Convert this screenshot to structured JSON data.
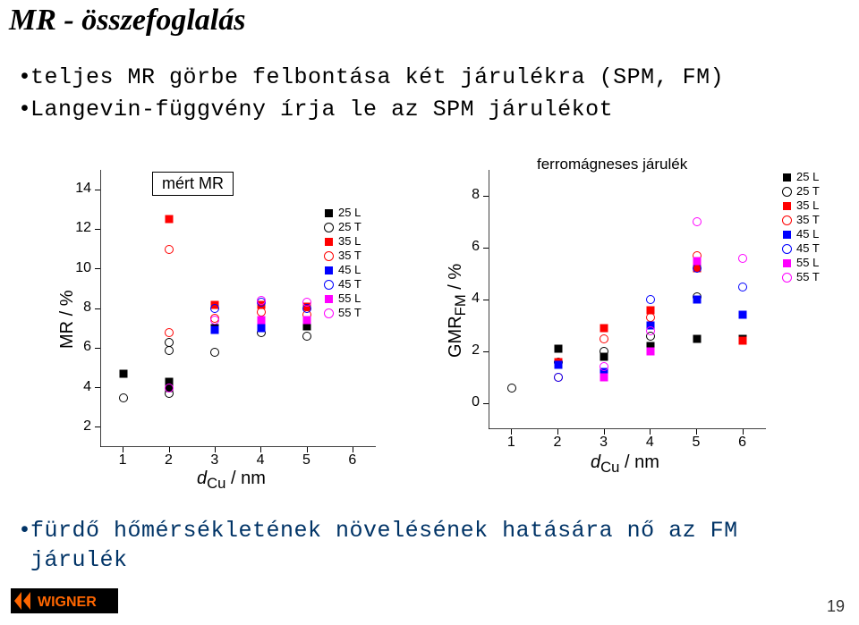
{
  "title": "MR - összefoglalás",
  "bullet1": "teljes MR görbe felbontása két járulékra (SPM, FM)",
  "bullet2": "Langevin-függvény írja le az SPM járulékot",
  "note_line1": "fürdő hőmérsékletének növelésének hatására nő az FM",
  "note_line2": "járulék",
  "pagenum": "19",
  "chart1": {
    "ylabel": "MR / %",
    "xlabel_html": "<span style='font-style:italic'>d</span><sub>Cu</sub> / nm",
    "boxed_title": "mért MR",
    "xlim": [
      0.5,
      6.5
    ],
    "ylim": [
      1,
      15
    ],
    "yticks": [
      2,
      4,
      6,
      8,
      10,
      12,
      14
    ],
    "xticks": [
      1,
      2,
      3,
      4,
      5,
      6
    ],
    "legend": [
      {
        "label": "25 L",
        "shape": "sq",
        "color": "#000000"
      },
      {
        "label": "25 T",
        "shape": "circ",
        "color": "#000000"
      },
      {
        "label": "35 L",
        "shape": "sq",
        "color": "#ff0000"
      },
      {
        "label": "35 T",
        "shape": "circ",
        "color": "#ff0000"
      },
      {
        "label": "45 L",
        "shape": "sq",
        "color": "#0000ff"
      },
      {
        "label": "45 T",
        "shape": "circ",
        "color": "#0000ff"
      },
      {
        "label": "55 L",
        "shape": "sq",
        "color": "#ff00ff"
      },
      {
        "label": "55 T",
        "shape": "circ",
        "color": "#ff00ff"
      }
    ],
    "series": [
      {
        "shape": "sq",
        "color": "#000000",
        "pts": [
          [
            1,
            4.7
          ],
          [
            2,
            4.3
          ],
          [
            2,
            4.0
          ],
          [
            3,
            7.0
          ],
          [
            4,
            7.2
          ],
          [
            5,
            7.1
          ]
        ]
      },
      {
        "shape": "circ",
        "color": "#000000",
        "pts": [
          [
            1,
            3.5
          ],
          [
            2,
            6.3
          ],
          [
            2,
            5.9
          ],
          [
            2,
            3.7
          ],
          [
            3,
            5.8
          ],
          [
            4,
            6.8
          ],
          [
            5,
            6.6
          ]
        ]
      },
      {
        "shape": "sq",
        "color": "#ff0000",
        "pts": [
          [
            2,
            12.5
          ],
          [
            3,
            8.2
          ],
          [
            4,
            8.2
          ],
          [
            5,
            8.1
          ]
        ]
      },
      {
        "shape": "circ",
        "color": "#ff0000",
        "pts": [
          [
            2,
            11.0
          ],
          [
            2,
            6.8
          ],
          [
            3,
            7.5
          ],
          [
            4,
            7.8
          ],
          [
            5,
            7.7
          ]
        ]
      },
      {
        "shape": "sq",
        "color": "#0000ff",
        "pts": [
          [
            3,
            6.9
          ],
          [
            4,
            7.0
          ]
        ]
      },
      {
        "shape": "circ",
        "color": "#0000ff",
        "pts": [
          [
            3,
            8.0
          ],
          [
            4,
            8.3
          ],
          [
            5,
            8.0
          ]
        ]
      },
      {
        "shape": "sq",
        "color": "#ff00ff",
        "pts": [
          [
            4,
            7.4
          ],
          [
            5,
            7.4
          ]
        ]
      },
      {
        "shape": "circ",
        "color": "#ff00ff",
        "pts": [
          [
            2,
            4.0
          ],
          [
            3,
            7.4
          ],
          [
            4,
            8.4
          ],
          [
            5,
            8.3
          ]
        ]
      }
    ]
  },
  "chart2": {
    "ylabel_html": "GMR<sub>FM</sub> / %",
    "xlabel_html": "<span style='font-style:italic'>d</span><sub>Cu</sub> / nm",
    "top_label": "ferromágneses járulék",
    "xlim": [
      0.5,
      6.5
    ],
    "ylim": [
      -1,
      9
    ],
    "yticks": [
      0,
      2,
      4,
      6,
      8
    ],
    "xticks": [
      1,
      2,
      3,
      4,
      5,
      6
    ],
    "legend": [
      {
        "label": "25 L",
        "shape": "sq",
        "color": "#000000"
      },
      {
        "label": "25 T",
        "shape": "circ",
        "color": "#000000"
      },
      {
        "label": "35 L",
        "shape": "sq",
        "color": "#ff0000"
      },
      {
        "label": "35 T",
        "shape": "circ",
        "color": "#ff0000"
      },
      {
        "label": "45 L",
        "shape": "sq",
        "color": "#0000ff"
      },
      {
        "label": "45 T",
        "shape": "circ",
        "color": "#0000ff"
      },
      {
        "label": "55 L",
        "shape": "sq",
        "color": "#ff00ff"
      },
      {
        "label": "55 T",
        "shape": "circ",
        "color": "#ff00ff"
      }
    ],
    "series": [
      {
        "shape": "sq",
        "color": "#000000",
        "pts": [
          [
            2,
            2.1
          ],
          [
            3,
            1.8
          ],
          [
            4,
            2.2
          ],
          [
            5,
            2.5
          ],
          [
            6,
            2.5
          ]
        ]
      },
      {
        "shape": "circ",
        "color": "#000000",
        "pts": [
          [
            1,
            0.6
          ],
          [
            2,
            1.6
          ],
          [
            3,
            2.0
          ],
          [
            4,
            2.6
          ],
          [
            5,
            4.1
          ]
        ]
      },
      {
        "shape": "sq",
        "color": "#ff0000",
        "pts": [
          [
            2,
            1.6
          ],
          [
            3,
            2.9
          ],
          [
            4,
            3.6
          ],
          [
            5,
            5.2
          ],
          [
            6,
            2.4
          ]
        ]
      },
      {
        "shape": "circ",
        "color": "#ff0000",
        "pts": [
          [
            2,
            1.0
          ],
          [
            3,
            2.5
          ],
          [
            4,
            3.3
          ],
          [
            5,
            5.7
          ]
        ]
      },
      {
        "shape": "sq",
        "color": "#0000ff",
        "pts": [
          [
            2,
            1.5
          ],
          [
            3,
            1.2
          ],
          [
            4,
            3.0
          ],
          [
            5,
            4.0
          ],
          [
            6,
            3.4
          ]
        ]
      },
      {
        "shape": "circ",
        "color": "#0000ff",
        "pts": [
          [
            2,
            1.0
          ],
          [
            4,
            4.0
          ],
          [
            5,
            5.2
          ],
          [
            6,
            4.5
          ]
        ]
      },
      {
        "shape": "sq",
        "color": "#ff00ff",
        "pts": [
          [
            3,
            1.0
          ],
          [
            4,
            2.0
          ],
          [
            5,
            5.5
          ]
        ]
      },
      {
        "shape": "circ",
        "color": "#ff00ff",
        "pts": [
          [
            3,
            1.4
          ],
          [
            4,
            2.8
          ],
          [
            5,
            7.0
          ],
          [
            6,
            5.6
          ]
        ]
      }
    ]
  },
  "logo_text": "WIGNER",
  "logo_colors": {
    "bg": "#000000",
    "text": "#ff6600",
    "accent": "#ffffff"
  }
}
